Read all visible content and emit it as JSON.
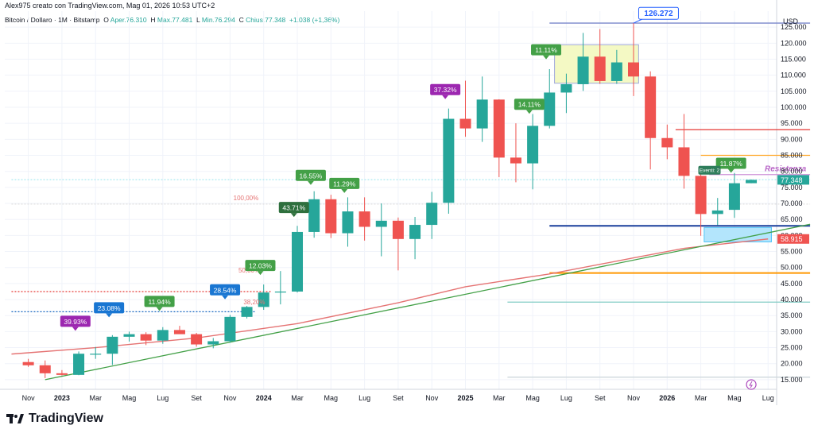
{
  "header": {
    "author_line": "Alex975 creato con TradingView.com, Mag 01, 2026 10:53 UTC+2"
  },
  "symbol": {
    "name": "Bitcoin / Dollaro · 1M · Bitstamp",
    "open_label": "O",
    "open_value": "Aper.76.310",
    "high_label": "H",
    "high_value": "Max.77.481",
    "low_label": "L",
    "low_value": "Min.76.294",
    "close_label": "C",
    "close_value": "Chius.77.348",
    "change": "+1.038 (+1,36%)"
  },
  "logo": {
    "text": "TradingView"
  },
  "colors": {
    "up": "#26a69a",
    "down": "#ef5350",
    "grid": "#f0f3fa",
    "ma": "#e57373",
    "trendline": "#43a047",
    "purple": "#9c27b0",
    "blue": "#1565c0"
  },
  "chart_data": {
    "type": "candlestick",
    "currency_label": "USD",
    "y_ticks": [
      "15.000",
      "20.000",
      "25.000",
      "30.000",
      "35.000",
      "40.000",
      "45.000",
      "50.000",
      "55.000",
      "60.000",
      "65.000",
      "70.000",
      "75.000",
      "80.000",
      "85.000",
      "90.000",
      "95.000",
      "100.000",
      "105.000",
      "110.000",
      "115.000",
      "120.000",
      "125.000"
    ],
    "y_range": [
      12000,
      130000
    ],
    "x_labels": [
      "Nov",
      "2023",
      "Mar",
      "Mag",
      "Lug",
      "Set",
      "Nov",
      "2024",
      "Mar",
      "Mag",
      "Lug",
      "Set",
      "Nov",
      "2025",
      "Mar",
      "Mag",
      "Lug",
      "Set",
      "Nov",
      "2026",
      "Mar",
      "Mag",
      "Lug"
    ],
    "candles": [
      {
        "t": 0,
        "o": 20500,
        "h": 21500,
        "l": 19000,
        "c": 19500
      },
      {
        "t": 1,
        "o": 19500,
        "h": 21000,
        "l": 15500,
        "c": 17000
      },
      {
        "t": 2,
        "o": 17000,
        "h": 18000,
        "l": 16300,
        "c": 16500
      },
      {
        "t": 3,
        "o": 16500,
        "h": 23800,
        "l": 16400,
        "c": 23100
      },
      {
        "t": 4,
        "o": 23100,
        "h": 25200,
        "l": 21500,
        "c": 23100
      },
      {
        "t": 5,
        "o": 23100,
        "h": 28900,
        "l": 19600,
        "c": 28400
      },
      {
        "t": 6,
        "o": 28400,
        "h": 30000,
        "l": 26900,
        "c": 29200
      },
      {
        "t": 7,
        "o": 29200,
        "h": 29800,
        "l": 25800,
        "c": 27200
      },
      {
        "t": 8,
        "o": 27200,
        "h": 31400,
        "l": 26200,
        "c": 30500
      },
      {
        "t": 9,
        "o": 30500,
        "h": 31800,
        "l": 29400,
        "c": 29200
      },
      {
        "t": 10,
        "o": 29200,
        "h": 29600,
        "l": 25300,
        "c": 26000
      },
      {
        "t": 11,
        "o": 26000,
        "h": 28000,
        "l": 24800,
        "c": 27000
      },
      {
        "t": 12,
        "o": 27000,
        "h": 35200,
        "l": 26600,
        "c": 34600
      },
      {
        "t": 13,
        "o": 34600,
        "h": 38000,
        "l": 34100,
        "c": 37700
      },
      {
        "t": 14,
        "o": 37700,
        "h": 44700,
        "l": 36800,
        "c": 42200
      },
      {
        "t": 15,
        "o": 42200,
        "h": 48900,
        "l": 38500,
        "c": 42500
      },
      {
        "t": 16,
        "o": 42500,
        "h": 63000,
        "l": 42200,
        "c": 61100
      },
      {
        "t": 17,
        "o": 61100,
        "h": 73800,
        "l": 59300,
        "c": 71300
      },
      {
        "t": 18,
        "o": 71300,
        "h": 72700,
        "l": 59200,
        "c": 60700
      },
      {
        "t": 19,
        "o": 60700,
        "h": 71900,
        "l": 56500,
        "c": 67500
      },
      {
        "t": 20,
        "o": 67500,
        "h": 71900,
        "l": 58400,
        "c": 62700
      },
      {
        "t": 21,
        "o": 62700,
        "h": 70000,
        "l": 53500,
        "c": 64600
      },
      {
        "t": 22,
        "o": 64600,
        "h": 65600,
        "l": 49100,
        "c": 58900
      },
      {
        "t": 23,
        "o": 58900,
        "h": 65800,
        "l": 52600,
        "c": 63300
      },
      {
        "t": 24,
        "o": 63300,
        "h": 73600,
        "l": 58900,
        "c": 70200
      },
      {
        "t": 25,
        "o": 70200,
        "h": 99600,
        "l": 66800,
        "c": 96400
      },
      {
        "t": 26,
        "o": 96400,
        "h": 108300,
        "l": 90800,
        "c": 93400
      },
      {
        "t": 27,
        "o": 93400,
        "h": 109600,
        "l": 89200,
        "c": 102400
      },
      {
        "t": 28,
        "o": 102400,
        "h": 102500,
        "l": 78200,
        "c": 84300
      },
      {
        "t": 29,
        "o": 84300,
        "h": 95000,
        "l": 76600,
        "c": 82500
      },
      {
        "t": 30,
        "o": 82500,
        "h": 97900,
        "l": 74400,
        "c": 94200
      },
      {
        "t": 31,
        "o": 94200,
        "h": 111900,
        "l": 93400,
        "c": 104600
      },
      {
        "t": 32,
        "o": 104600,
        "h": 110500,
        "l": 98200,
        "c": 107200
      },
      {
        "t": 33,
        "o": 107200,
        "h": 123200,
        "l": 105100,
        "c": 115800
      },
      {
        "t": 34,
        "o": 115800,
        "h": 124400,
        "l": 107300,
        "c": 108200
      },
      {
        "t": 35,
        "o": 108200,
        "h": 117900,
        "l": 107300,
        "c": 114000
      },
      {
        "t": 36,
        "o": 114000,
        "h": 126272,
        "l": 103500,
        "c": 109600
      },
      {
        "t": 37,
        "o": 109600,
        "h": 111200,
        "l": 80600,
        "c": 90400
      },
      {
        "t": 38,
        "o": 90400,
        "h": 94600,
        "l": 83800,
        "c": 87500
      },
      {
        "t": 39,
        "o": 87500,
        "h": 97900,
        "l": 74600,
        "c": 78600
      },
      {
        "t": 40,
        "o": 78600,
        "h": 79200,
        "l": 59900,
        "c": 66700
      },
      {
        "t": 41,
        "o": 66700,
        "h": 71700,
        "l": 63200,
        "c": 67800
      },
      {
        "t": 42,
        "o": 68000,
        "h": 79500,
        "l": 65500,
        "c": 76300
      },
      {
        "t": 43,
        "o": 76310,
        "h": 77481,
        "l": 76294,
        "c": 77348
      }
    ],
    "moving_average": [
      {
        "t": -1,
        "v": 23000
      },
      {
        "t": 4,
        "v": 25000
      },
      {
        "t": 10,
        "v": 28000
      },
      {
        "t": 16,
        "v": 32500
      },
      {
        "t": 22,
        "v": 39000
      },
      {
        "t": 26,
        "v": 44000
      },
      {
        "t": 31,
        "v": 48000
      },
      {
        "t": 36,
        "v": 53000
      },
      {
        "t": 39,
        "v": 56000
      },
      {
        "t": 44,
        "v": 58915
      }
    ],
    "trendline": {
      "t1": 1,
      "v1": 15000,
      "t2": 46.5,
      "v2": 63500
    },
    "horizontal_levels": [
      {
        "name": "ath-level",
        "value": 126272,
        "t_from": 31,
        "t_to": 46.5,
        "color": "#7986cb"
      },
      {
        "name": "red-level-93",
        "value": 93000,
        "t_from": 38.5,
        "t_to": 46.5,
        "color": "#e53935"
      },
      {
        "name": "orange-level-85",
        "value": 85000,
        "t_from": 40,
        "t_to": 46.5,
        "color": "#ffa726"
      },
      {
        "name": "resistance-level",
        "value": 79000,
        "t_from": 40.5,
        "t_to": 46.5,
        "color": "#ce93d8"
      },
      {
        "name": "support-level-63",
        "value": 63000,
        "t_from": 31,
        "t_to": 46.5,
        "color": "#1a3f9c"
      },
      {
        "name": "orange-level-48",
        "value": 48300,
        "t_from": 31,
        "t_to": 46.5,
        "color": "#ff9800"
      },
      {
        "name": "teal-level-39",
        "value": 39200,
        "t_from": 28.5,
        "t_to": 46.5,
        "color": "#80cbc4"
      },
      {
        "name": "grey-level-15",
        "value": 15800,
        "t_from": 28.5,
        "t_to": 46.5,
        "color": "#cfd8dc"
      },
      {
        "name": "dotted-red-42",
        "value": 42500,
        "t_from": -1,
        "t_to": 14.5,
        "color": "#e53935"
      },
      {
        "name": "dotted-blue-36",
        "value": 36200,
        "t_from": -1,
        "t_to": 13.5,
        "color": "#1565c0"
      },
      {
        "name": "dotted-lightblue-77",
        "value": 77400,
        "t_from": -1,
        "t_to": 46.5,
        "color": "#b2ebf2"
      },
      {
        "name": "dotted-grey-70",
        "value": 69800,
        "t_from": -1,
        "t_to": 46.5,
        "color": "#e0e0e0"
      }
    ],
    "boxes": [
      {
        "name": "top-zone-box",
        "t1": 31.3,
        "t2": 36.3,
        "v1": 107500,
        "v2": 119500,
        "fill": "#f4f9c4",
        "stroke": "#9fa8da"
      },
      {
        "name": "demand-zone-box",
        "t1": 40.2,
        "t2": 44.2,
        "v1": 58000,
        "v2": 62500,
        "fill": "#b3e5fc",
        "stroke": "#4fc3f7"
      }
    ],
    "fib_labels": [
      {
        "text": "100,00%",
        "t": 12.2,
        "v": 71000
      },
      {
        "text": "50,00%",
        "t": 12.5,
        "v": 48500
      },
      {
        "text": "38,20%",
        "t": 12.8,
        "v": 38500
      }
    ],
    "annotations": [
      {
        "text": "39.93%",
        "t": 2.8,
        "v": 31500,
        "color": "#9c27b0",
        "dir": "down"
      },
      {
        "text": "23.08%",
        "t": 4.8,
        "v": 35700,
        "color": "#1976d2",
        "dir": "down"
      },
      {
        "text": "11.94%",
        "t": 7.8,
        "v": 37700,
        "color": "#43a047",
        "dir": "down"
      },
      {
        "text": "28.54%",
        "t": 11.7,
        "v": 41300,
        "color": "#1976d2",
        "dir": "down"
      },
      {
        "text": "12.03%",
        "t": 13.8,
        "v": 48900,
        "color": "#43a047",
        "dir": "down"
      },
      {
        "text": "43.71%",
        "t": 15.8,
        "v": 67000,
        "color": "#2e6f3e",
        "dir": "down"
      },
      {
        "text": "16.55%",
        "t": 16.8,
        "v": 77000,
        "color": "#43a047",
        "dir": "down"
      },
      {
        "text": "11.29%",
        "t": 18.8,
        "v": 74500,
        "color": "#43a047",
        "dir": "down"
      },
      {
        "text": "37.32%",
        "t": 24.8,
        "v": 103800,
        "color": "#9c27b0",
        "dir": "down"
      },
      {
        "text": "14.11%",
        "t": 29.8,
        "v": 99200,
        "color": "#43a047",
        "dir": "down"
      },
      {
        "text": "11.11%",
        "t": 30.8,
        "v": 116200,
        "color": "#43a047",
        "dir": "down"
      },
      {
        "text": "11.87%",
        "t": 41.8,
        "v": 80800,
        "color": "#43a047",
        "dir": "down"
      }
    ],
    "event_label": {
      "text": "Eventi: 2",
      "t": 39.9,
      "v": 79500
    },
    "resistance_label": {
      "text": "Resistenza",
      "t": 43.8,
      "v": 80000
    },
    "ath_label": {
      "text": "126.272",
      "t": 36.4,
      "v": 128700
    },
    "price_tags": [
      {
        "text": "77.348",
        "value": 77348,
        "color": "#26a69a"
      },
      {
        "text": "58.915",
        "value": 58915,
        "color": "#ef5350"
      }
    ]
  }
}
